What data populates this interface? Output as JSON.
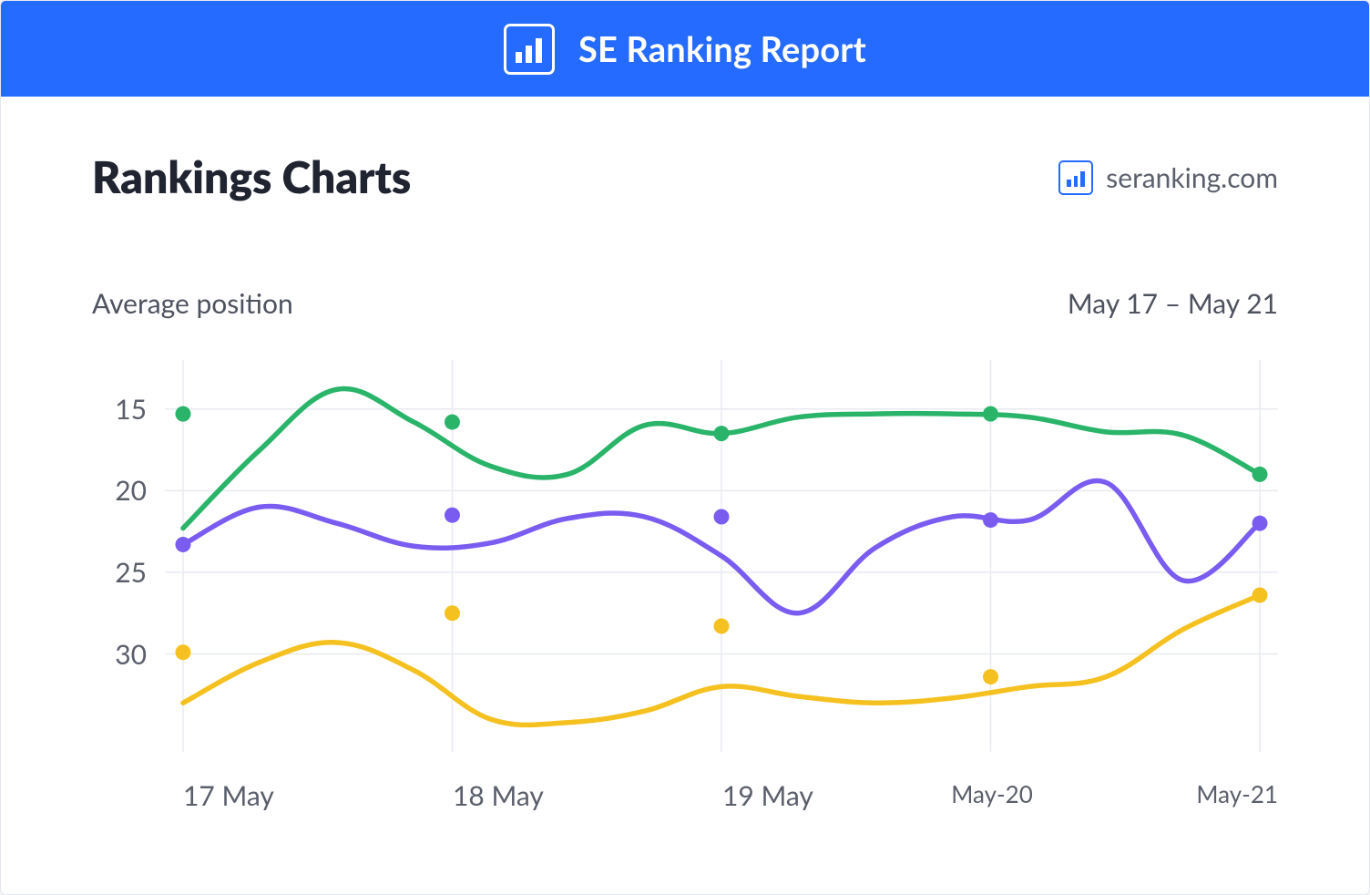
{
  "header": {
    "title": "SE Ranking Report",
    "bg_color": "#256BFF",
    "title_color": "#ffffff",
    "title_fontsize": 38
  },
  "page": {
    "title": "Rankings Charts",
    "title_fontsize": 48,
    "title_color": "#1f2430"
  },
  "brand": {
    "label": "seranking.com",
    "label_fontsize": 30,
    "label_color": "#5a5f6b",
    "icon_color": "#256BFF"
  },
  "subheader": {
    "left": "Average position",
    "right": "May 17 – May 21",
    "fontsize": 30,
    "color": "#4d525e"
  },
  "chart": {
    "type": "line",
    "background_color": "#ffffff",
    "grid_color": "#e8eaf0",
    "line_width": 5.5,
    "marker_radius": 8.5,
    "y_axis": {
      "label_color": "#5a5f6b",
      "label_fontsize": 30,
      "inverted": true,
      "min": 12,
      "max": 36,
      "ticks": [
        15,
        20,
        25,
        30
      ]
    },
    "x_axis": {
      "label_color": "#5a5f6b",
      "label_fontsize_large": 30,
      "label_fontsize_small": 26,
      "categories": [
        "17 May",
        "18 May",
        "19 May",
        "May-20",
        "May-21"
      ],
      "small_labels": [
        "May-20",
        "May-21"
      ]
    },
    "series": [
      {
        "name": "green",
        "color": "#2AB46A",
        "marker_points": [
          15.3,
          15.8,
          16.5,
          15.3,
          19.0
        ],
        "path_points": [
          22.3,
          17.5,
          13.8,
          15.8,
          18.5,
          19.0,
          16.0,
          16.5,
          15.5,
          15.3,
          15.3,
          15.5,
          16.4,
          16.6,
          19.0
        ]
      },
      {
        "name": "purple",
        "color": "#7A5CF0",
        "marker_points": [
          23.3,
          21.5,
          21.6,
          21.8,
          22.0
        ],
        "path_points": [
          23.3,
          21.0,
          22.0,
          23.4,
          23.2,
          21.7,
          21.6,
          24.0,
          27.5,
          23.5,
          21.6,
          21.8,
          19.5,
          25.5,
          22.0
        ]
      },
      {
        "name": "yellow",
        "color": "#F5C120",
        "marker_points": [
          29.9,
          27.5,
          28.3,
          31.4,
          26.4
        ],
        "path_points": [
          33.0,
          30.5,
          29.3,
          31.0,
          34.0,
          34.2,
          33.5,
          32.0,
          32.6,
          33.0,
          32.7,
          32.0,
          31.4,
          28.5,
          26.4
        ]
      }
    ]
  }
}
